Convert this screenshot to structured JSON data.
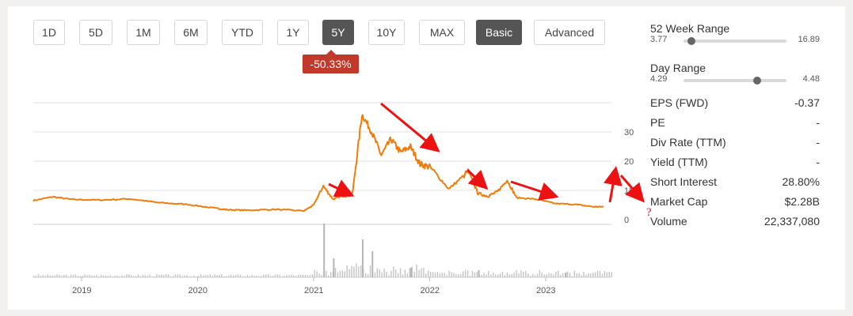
{
  "toolbar": {
    "buttons": [
      {
        "label": "1D",
        "active": false
      },
      {
        "label": "5D",
        "active": false
      },
      {
        "label": "1M",
        "active": false
      },
      {
        "label": "6M",
        "active": false
      },
      {
        "label": "YTD",
        "active": false
      },
      {
        "label": "1Y",
        "active": false
      },
      {
        "label": "5Y",
        "active": true
      },
      {
        "label": "10Y",
        "active": false
      },
      {
        "label": "MAX",
        "active": false
      },
      {
        "label": "Basic",
        "active": true
      },
      {
        "label": "Advanced",
        "active": false
      }
    ],
    "change_badge": "-50.33%",
    "badge_color": "#c0392b"
  },
  "chart_data": {
    "type": "line",
    "x_labels": [
      "2019",
      "2020",
      "2021",
      "2022",
      "2023"
    ],
    "y_ticks": [
      "30",
      "20",
      "10",
      "0"
    ],
    "ylim": [
      0,
      40
    ],
    "series": [
      {
        "color": "#f07d0a",
        "points": [
          [
            "2018-08",
            6.5
          ],
          [
            "2018-10",
            7.8
          ],
          [
            "2018-12",
            6.9
          ],
          [
            "2019-03",
            6.7
          ],
          [
            "2019-06",
            7.1
          ],
          [
            "2019-09",
            5.8
          ],
          [
            "2019-12",
            5.2
          ],
          [
            "2020-03",
            3.8
          ],
          [
            "2020-04",
            3.4
          ],
          [
            "2020-06",
            3.2
          ],
          [
            "2020-09",
            3.5
          ],
          [
            "2020-12",
            3.0
          ],
          [
            "2021-01",
            5.0
          ],
          [
            "2021-02",
            11.5
          ],
          [
            "2021-03",
            7.0
          ],
          [
            "2021-04",
            8.2
          ],
          [
            "2021-05",
            8.5
          ],
          [
            "2021-06",
            36.0
          ],
          [
            "2021-07",
            30.0
          ],
          [
            "2021-08",
            22.0
          ],
          [
            "2021-09",
            27.5
          ],
          [
            "2021-10",
            23.0
          ],
          [
            "2021-11",
            25.0
          ],
          [
            "2021-12",
            19.0
          ],
          [
            "2022-01",
            18.0
          ],
          [
            "2022-03",
            10.5
          ],
          [
            "2022-05",
            16.5
          ],
          [
            "2022-06",
            9.0
          ],
          [
            "2022-07",
            8.0
          ],
          [
            "2022-08",
            9.5
          ],
          [
            "2022-09",
            13.5
          ],
          [
            "2022-10",
            7.5
          ],
          [
            "2022-12",
            7.0
          ],
          [
            "2023-02",
            5.5
          ],
          [
            "2023-04",
            5.2
          ],
          [
            "2023-06",
            4.4
          ],
          [
            "2023-07",
            4.4
          ]
        ]
      }
    ],
    "volume_bars": [
      [
        "2021-02",
        68
      ],
      [
        "2021-03",
        24
      ],
      [
        "2021-06",
        48
      ],
      [
        "2021-07",
        33
      ],
      [
        "2021-11",
        12
      ],
      [
        "2022-06",
        9
      ],
      [
        "2023-03",
        6
      ]
    ]
  },
  "annotations": {
    "arrow_color": "#ee1111",
    "question_mark": "?"
  },
  "panel": {
    "range52": {
      "title": "52 Week Range",
      "low": "3.77",
      "high": "16.89",
      "pos": 0.04
    },
    "dayrange": {
      "title": "Day Range",
      "low": "4.29",
      "high": "4.48",
      "pos": 0.68
    },
    "stats": [
      {
        "key": "EPS (FWD)",
        "value": "-0.37"
      },
      {
        "key": "PE",
        "value": "-"
      },
      {
        "key": "Div Rate (TTM)",
        "value": "-"
      },
      {
        "key": "Yield (TTM)",
        "value": "-"
      },
      {
        "key": "Short Interest",
        "value": "28.80%"
      },
      {
        "key": "Market Cap",
        "value": "$2.28B"
      },
      {
        "key": "Volume",
        "value": "22,337,080"
      }
    ]
  }
}
